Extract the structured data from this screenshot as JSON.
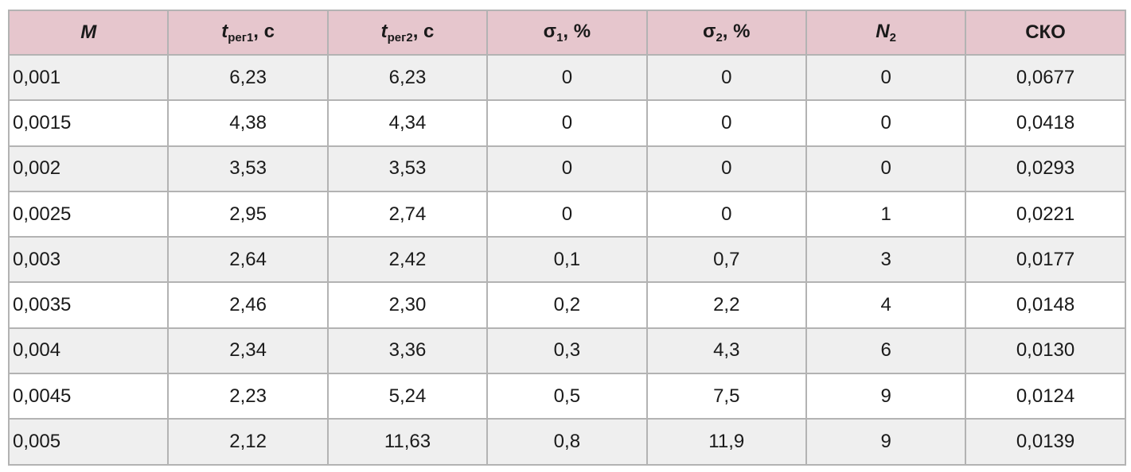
{
  "table": {
    "header": [
      {
        "symbol": "M",
        "italic": true
      },
      {
        "symbol": "t",
        "sub": "рег1",
        "unit": ", с",
        "italic": true
      },
      {
        "symbol": "t",
        "sub": "рег2",
        "unit": ", с",
        "italic": true
      },
      {
        "symbol": "σ",
        "sub": "1",
        "unit": ", %",
        "italic": false
      },
      {
        "symbol": "σ",
        "sub": "2",
        "unit": ", %",
        "italic": false
      },
      {
        "symbol": "N",
        "sub": "2",
        "italic": true
      },
      {
        "symbol": "СКО",
        "italic": false
      }
    ],
    "rows": [
      [
        "0,001",
        "6,23",
        "6,23",
        "0",
        "0",
        "0",
        "0,0677"
      ],
      [
        "0,0015",
        "4,38",
        "4,34",
        "0",
        "0",
        "0",
        "0,0418"
      ],
      [
        "0,002",
        "3,53",
        "3,53",
        "0",
        "0",
        "0",
        "0,0293"
      ],
      [
        "0,0025",
        "2,95",
        "2,74",
        "0",
        "0",
        "1",
        "0,0221"
      ],
      [
        "0,003",
        "2,64",
        "2,42",
        "0,1",
        "0,7",
        "3",
        "0,0177"
      ],
      [
        "0,0035",
        "2,46",
        "2,30",
        "0,2",
        "2,2",
        "4",
        "0,0148"
      ],
      [
        "0,004",
        "2,34",
        "3,36",
        "0,3",
        "4,3",
        "6",
        "0,0130"
      ],
      [
        "0,0045",
        "2,23",
        "5,24",
        "0,5",
        "7,5",
        "9",
        "0,0124"
      ],
      [
        "0,005",
        "2,12",
        "11,63",
        "0,8",
        "11,9",
        "9",
        "0,0139"
      ]
    ]
  }
}
